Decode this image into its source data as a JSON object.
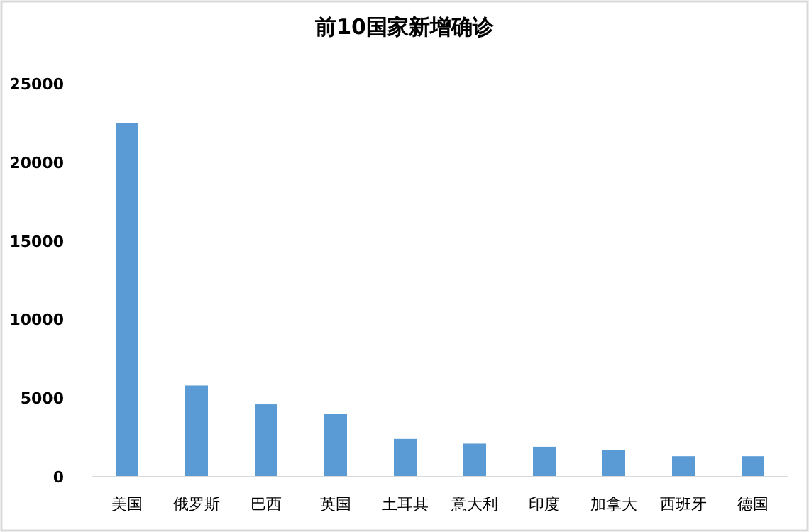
{
  "chart_data": {
    "type": "bar",
    "title": "前10国家新增确诊",
    "categories": [
      "美国",
      "俄罗斯",
      "巴西",
      "英国",
      "土耳其",
      "意大利",
      "印度",
      "加拿大",
      "西班牙",
      "德国"
    ],
    "values": [
      22500,
      5800,
      4600,
      4000,
      2400,
      2100,
      1900,
      1700,
      1300,
      1300
    ],
    "color": "#5b9bd5",
    "ylim": [
      0,
      25000
    ],
    "yticks": [
      0,
      5000,
      10000,
      15000,
      20000,
      25000
    ]
  }
}
